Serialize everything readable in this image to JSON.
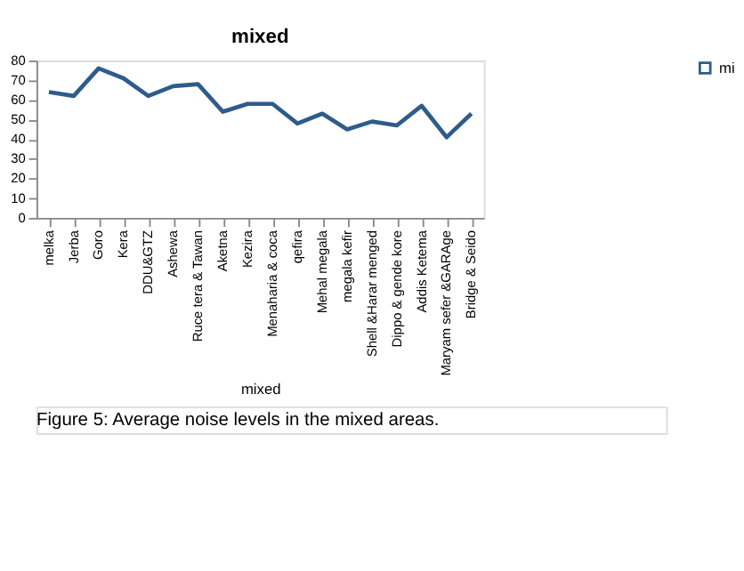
{
  "chart_data": {
    "type": "line",
    "title": "mixed",
    "xlabel": "mixed",
    "categories": [
      "melka",
      "Jerba",
      "Goro",
      "Kera",
      "DDU&GTZ",
      "Ashewa",
      "Ruce tera & Tawan",
      "Aketna",
      "Kezira",
      "Menaharia & coca",
      "qefira",
      "Mehal megala",
      "megala kefir",
      "Shell &Harar menged",
      "Dippo & gende kore",
      "Addis Ketema",
      "Maryam sefer &GARAge",
      "Bridge & Seido"
    ],
    "series": [
      {
        "name": "mi",
        "color": "#2e5c8a",
        "values": [
          64,
          62,
          76,
          71,
          62,
          67,
          68,
          54,
          58,
          58,
          48,
          53,
          45,
          49,
          47,
          57,
          41,
          53
        ]
      }
    ],
    "ylim": [
      0,
      80
    ],
    "yticks": [
      0,
      10,
      20,
      30,
      40,
      50,
      60,
      70,
      80
    ],
    "grid": false,
    "legend": "right",
    "marker": "none",
    "line_style": "solid",
    "annotations": [
      "Figure 5: Average noise levels in the mixed areas."
    ]
  }
}
